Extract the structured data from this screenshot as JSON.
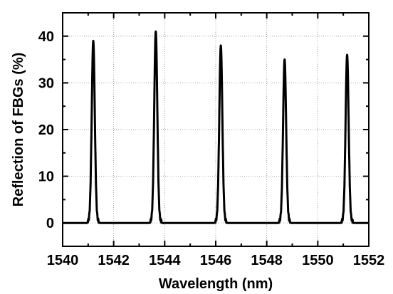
{
  "chart_data": {
    "type": "line",
    "title": "",
    "xlabel": "Wavelength (nm)",
    "ylabel": "Reflection of FBGs (%)",
    "xlim": [
      1540,
      1552
    ],
    "ylim": [
      -5,
      45
    ],
    "xticks": [
      1540,
      1542,
      1544,
      1546,
      1548,
      1550,
      1552
    ],
    "yticks": [
      0,
      10,
      20,
      30,
      40
    ],
    "grid": true,
    "legend": "none",
    "line_color": "#000000",
    "peaks": [
      {
        "center": 1541.2,
        "peak": 39
      },
      {
        "center": 1543.65,
        "peak": 41
      },
      {
        "center": 1546.2,
        "peak": 38
      },
      {
        "center": 1548.7,
        "peak": 35
      },
      {
        "center": 1551.15,
        "peak": 36
      }
    ]
  }
}
